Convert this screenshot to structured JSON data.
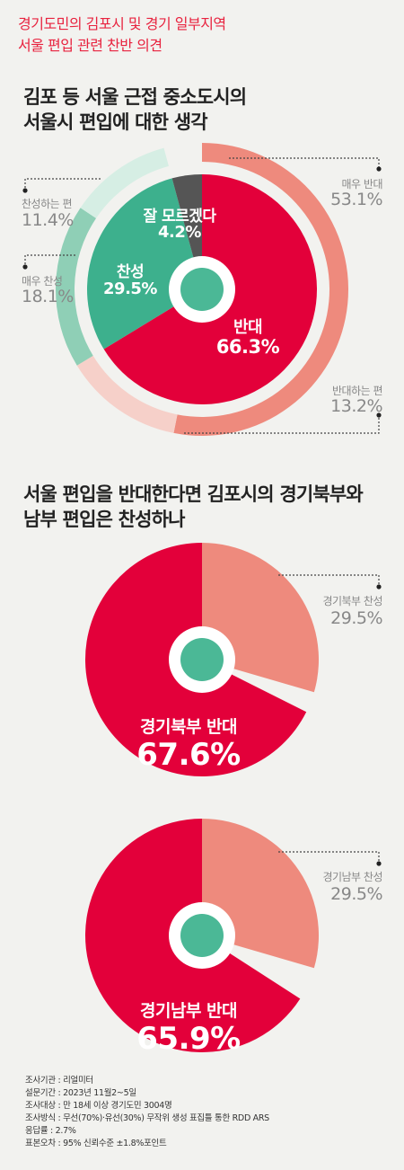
{
  "header": {
    "line1": "경기도민의 김포시 및 경기 일부지역",
    "line2": "서울 편입 관련 찬반 의견"
  },
  "section1": {
    "title1": "김포 등 서울 근접 중소도시의",
    "title2": "서울시 편입에 대한 생각"
  },
  "section2": {
    "title1": "서울 편입을 반대한다면 김포시의 경기북부와",
    "title2": "남부 편입은 찬성하나"
  },
  "colors": {
    "red": "#e3003a",
    "teal": "#3db08d",
    "gray": "#555555",
    "salmon": "#ee8a7d",
    "pink": "#f6d0c9",
    "green_dark": "#8fcfb6",
    "green_light": "#d6eee4",
    "center": "#4bb896"
  },
  "chart_data": [
    {
      "type": "pie",
      "title": "김포 등 서울 근접 중소도시의 서울시 편입에 대한 생각",
      "inner": [
        {
          "name": "반대",
          "value": 66.3,
          "label": "66.3%"
        },
        {
          "name": "찬성",
          "value": 29.5,
          "label": "29.5%"
        },
        {
          "name": "잘 모르겠다",
          "value": 4.2,
          "label": "4.2%"
        }
      ],
      "outer": [
        {
          "name": "매우 반대",
          "value": 53.1,
          "label": "53.1%"
        },
        {
          "name": "반대하는 편",
          "value": 13.2,
          "label": "13.2%"
        },
        {
          "name": "매우 찬성",
          "value": 18.1,
          "label": "18.1%"
        },
        {
          "name": "찬성하는 편",
          "value": 11.4,
          "label": "11.4%"
        }
      ]
    },
    {
      "type": "pie",
      "slices": [
        {
          "name": "경기북부 반대",
          "value": 67.6,
          "label": "67.6%"
        },
        {
          "name": "경기북부 찬성",
          "value": 29.5,
          "label": "29.5%"
        }
      ]
    },
    {
      "type": "pie",
      "slices": [
        {
          "name": "경기남부 반대",
          "value": 65.9,
          "label": "65.9%"
        },
        {
          "name": "경기남부 찬성",
          "value": 29.5,
          "label": "29.5%"
        }
      ]
    }
  ],
  "notes": [
    "조사기관 : 리얼미터",
    "설문기간 : 2023년 11월2~5일",
    "조사대상 : 만 18세 이상 경기도민 3004명",
    "조사방식 : 무선(70%)·유선(30%) 무작위 생성 표집틀 통한 RDD ARS",
    "응답률 : 2.7%",
    "표본오차 : 95% 신뢰수준 ±1.8%포인트"
  ]
}
